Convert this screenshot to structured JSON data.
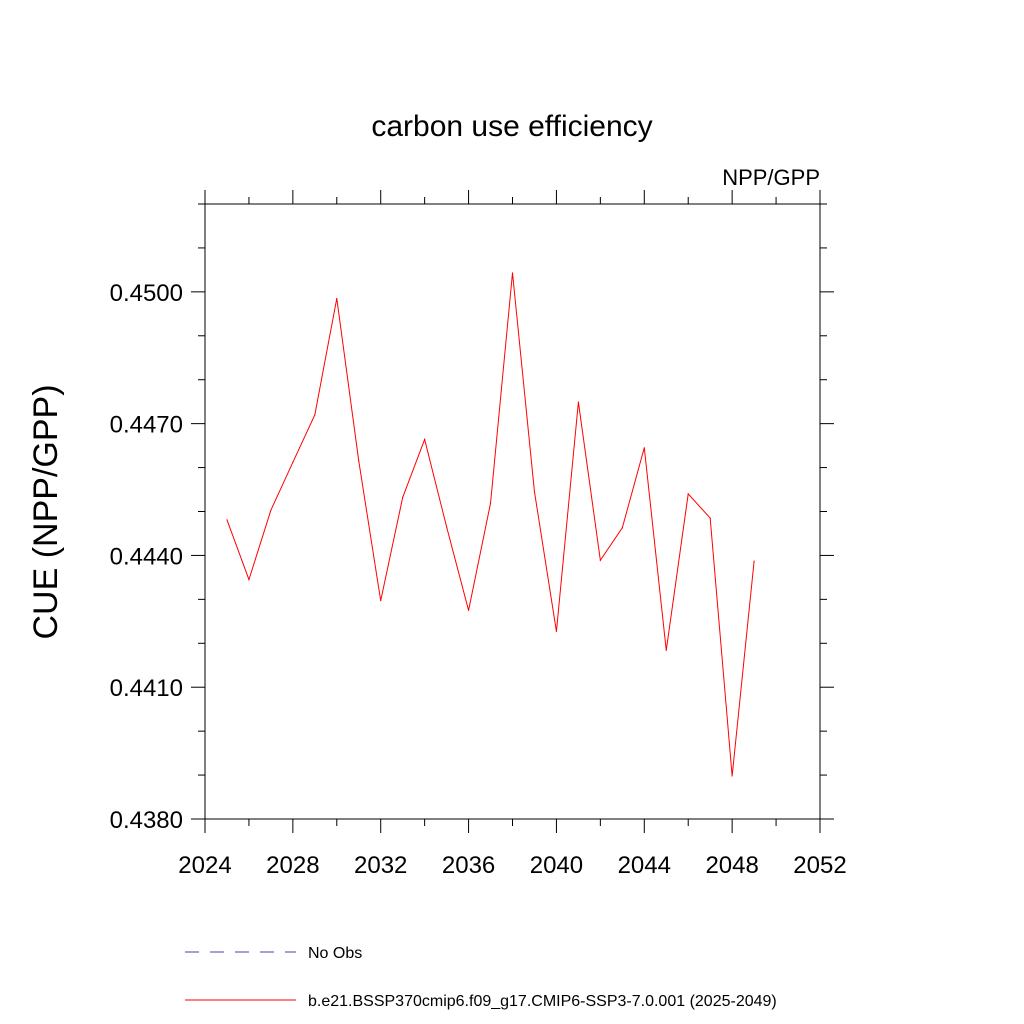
{
  "chart_data": {
    "type": "line",
    "title": "carbon use efficiency",
    "subtitle": "NPP/GPP",
    "xlabel": "",
    "ylabel": "CUE  (NPP/GPP)",
    "xlim": [
      2024,
      2052
    ],
    "ylim": [
      0.438,
      0.452
    ],
    "x_ticks": [
      2024,
      2028,
      2032,
      2036,
      2040,
      2044,
      2048,
      2052
    ],
    "x_tick_labels": [
      "2024",
      "2028",
      "2032",
      "2036",
      "2040",
      "2044",
      "2048",
      "2052"
    ],
    "x_minor_step": 2,
    "y_ticks": [
      0.438,
      0.441,
      0.444,
      0.447,
      0.45
    ],
    "y_tick_labels": [
      "0.4380",
      "0.4410",
      "0.4440",
      "0.4470",
      "0.4500"
    ],
    "y_minor_step": 0.001,
    "grid": false,
    "legend_position": "bottom",
    "series": [
      {
        "name": "b.e21.BSSP370cmip6.f09_g17.CMIP6-SSP3-7.0.001 (2025-2049)",
        "color": "#ff0000",
        "style": "solid",
        "x": [
          2025,
          2026,
          2027,
          2028,
          2029,
          2030,
          2031,
          2032,
          2033,
          2034,
          2035,
          2036,
          2037,
          2038,
          2039,
          2040,
          2041,
          2042,
          2043,
          2044,
          2045,
          2046,
          2047,
          2048,
          2049
        ],
        "values": [
          0.44481,
          0.44345,
          0.44503,
          0.44612,
          0.4472,
          0.44985,
          0.44615,
          0.44297,
          0.44532,
          0.44664,
          0.44465,
          0.44275,
          0.44519,
          0.45043,
          0.44545,
          0.44227,
          0.44749,
          0.44389,
          0.44463,
          0.44645,
          0.44184,
          0.4454,
          0.44485,
          0.43898,
          0.44387
        ]
      }
    ],
    "legend": [
      {
        "label": "No Obs",
        "color": "#4b3fb0",
        "style": "dashed"
      },
      {
        "label": "b.e21.BSSP370cmip6.f09_g17.CMIP6-SSP3-7.0.001 (2025-2049)",
        "color": "#ff0000",
        "style": "solid"
      }
    ]
  }
}
